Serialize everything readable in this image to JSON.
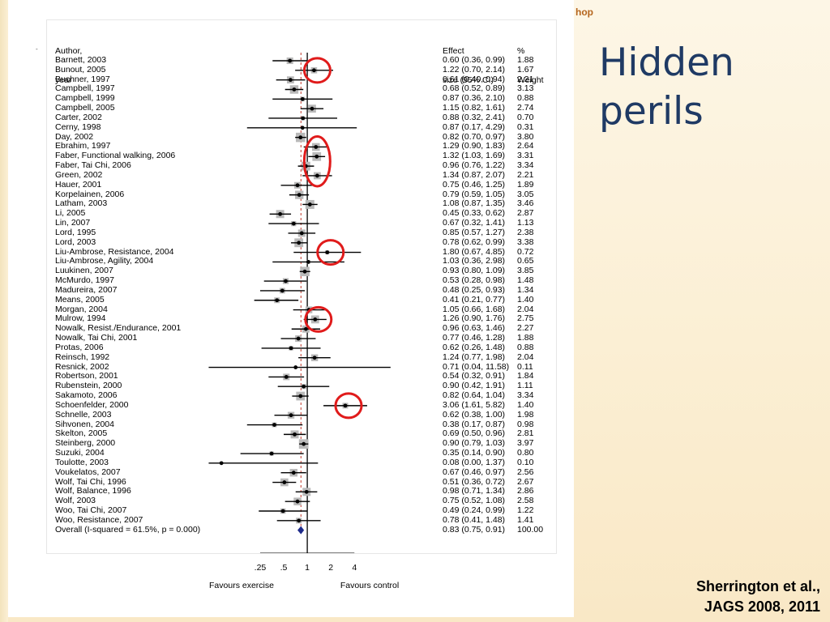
{
  "slide": {
    "title": "Hidden perils",
    "corner_tag": "hop",
    "citation_line1": "Sherrington et al.,",
    "citation_line2": "JAGS 2008, 2011",
    "stray_mark": "-"
  },
  "colors": {
    "title": "#1f3a64",
    "corner_tag": "#b5651d",
    "highlight_ellipse": "#e01b1b",
    "box_fill": "#b9b9b9",
    "overall_diamond": "#1e2a8a",
    "overall_line": "#c0392b"
  },
  "chart_data": {
    "type": "forest",
    "headers": {
      "study": [
        "Author,",
        "year"
      ],
      "effect": [
        "Effect",
        "size (95% CI)"
      ],
      "weight": [
        "%",
        "Weight"
      ]
    },
    "x_scale": "log",
    "xlim": [
      0.055,
      12
    ],
    "x_ticks": [
      0.25,
      0.5,
      1,
      2,
      4
    ],
    "x_tick_labels": [
      ".25",
      ".5",
      "1",
      "2",
      "4"
    ],
    "favours_left": "Favours exercise",
    "favours_right": "Favours control",
    "studies": [
      {
        "name": "Barnett, 2003",
        "es": 0.6,
        "lo": 0.36,
        "hi": 0.99,
        "ci_text": "0.60 (0.36, 0.99)",
        "w": 1.88,
        "w_text": "1.88"
      },
      {
        "name": "Bunout, 2005",
        "es": 1.22,
        "lo": 0.7,
        "hi": 2.14,
        "ci_text": "1.22 (0.70, 2.14)",
        "w": 1.67,
        "w_text": "1.67"
      },
      {
        "name": "Buchner, 1997",
        "es": 0.61,
        "lo": 0.4,
        "hi": 0.94,
        "ci_text": "0.61 (0.40, 0.94)",
        "w": 2.21,
        "w_text": "2.21"
      },
      {
        "name": "Campbell, 1997",
        "es": 0.68,
        "lo": 0.52,
        "hi": 0.89,
        "ci_text": "0.68 (0.52, 0.89)",
        "w": 3.13,
        "w_text": "3.13"
      },
      {
        "name": "Campbell, 1999",
        "es": 0.87,
        "lo": 0.36,
        "hi": 2.1,
        "ci_text": "0.87 (0.36, 2.10)",
        "w": 0.88,
        "w_text": "0.88"
      },
      {
        "name": "Campbell, 2005",
        "es": 1.15,
        "lo": 0.82,
        "hi": 1.61,
        "ci_text": "1.15 (0.82, 1.61)",
        "w": 2.74,
        "w_text": "2.74"
      },
      {
        "name": "Carter, 2002",
        "es": 0.88,
        "lo": 0.32,
        "hi": 2.41,
        "ci_text": "0.88 (0.32, 2.41)",
        "w": 0.7,
        "w_text": "0.70"
      },
      {
        "name": "Cerny, 1998",
        "es": 0.87,
        "lo": 0.17,
        "hi": 4.29,
        "ci_text": "0.87 (0.17, 4.29)",
        "w": 0.31,
        "w_text": "0.31"
      },
      {
        "name": "Day, 2002",
        "es": 0.82,
        "lo": 0.7,
        "hi": 0.97,
        "ci_text": "0.82 (0.70, 0.97)",
        "w": 3.8,
        "w_text": "3.80"
      },
      {
        "name": "Ebrahim, 1997",
        "es": 1.29,
        "lo": 0.9,
        "hi": 1.83,
        "ci_text": "1.29 (0.90, 1.83)",
        "w": 2.64,
        "w_text": "2.64"
      },
      {
        "name": "Faber, Functional walking, 2006",
        "es": 1.32,
        "lo": 1.03,
        "hi": 1.69,
        "ci_text": "1.32 (1.03, 1.69)",
        "w": 3.31,
        "w_text": "3.31"
      },
      {
        "name": "Faber, Tai Chi, 2006",
        "es": 0.96,
        "lo": 0.76,
        "hi": 1.22,
        "ci_text": "0.96 (0.76, 1.22)",
        "w": 3.34,
        "w_text": "3.34"
      },
      {
        "name": "Green, 2002",
        "es": 1.34,
        "lo": 0.87,
        "hi": 2.07,
        "ci_text": "1.34 (0.87, 2.07)",
        "w": 2.21,
        "w_text": "2.21"
      },
      {
        "name": "Hauer, 2001",
        "es": 0.75,
        "lo": 0.46,
        "hi": 1.25,
        "ci_text": "0.75 (0.46, 1.25)",
        "w": 1.89,
        "w_text": "1.89"
      },
      {
        "name": "Korpelainen, 2006",
        "es": 0.79,
        "lo": 0.59,
        "hi": 1.05,
        "ci_text": "0.79 (0.59, 1.05)",
        "w": 3.05,
        "w_text": "3.05"
      },
      {
        "name": "Latham, 2003",
        "es": 1.08,
        "lo": 0.87,
        "hi": 1.35,
        "ci_text": "1.08 (0.87, 1.35)",
        "w": 3.46,
        "w_text": "3.46"
      },
      {
        "name": "Li, 2005",
        "es": 0.45,
        "lo": 0.33,
        "hi": 0.62,
        "ci_text": "0.45 (0.33, 0.62)",
        "w": 2.87,
        "w_text": "2.87"
      },
      {
        "name": "Lin, 2007",
        "es": 0.67,
        "lo": 0.32,
        "hi": 1.41,
        "ci_text": "0.67 (0.32, 1.41)",
        "w": 1.13,
        "w_text": "1.13"
      },
      {
        "name": "Lord, 1995",
        "es": 0.85,
        "lo": 0.57,
        "hi": 1.27,
        "ci_text": "0.85 (0.57, 1.27)",
        "w": 2.38,
        "w_text": "2.38"
      },
      {
        "name": "Lord, 2003",
        "es": 0.78,
        "lo": 0.62,
        "hi": 0.99,
        "ci_text": "0.78 (0.62, 0.99)",
        "w": 3.38,
        "w_text": "3.38"
      },
      {
        "name": "Liu-Ambrose, Resistance, 2004",
        "es": 1.8,
        "lo": 0.67,
        "hi": 4.85,
        "ci_text": "1.80 (0.67, 4.85)",
        "w": 0.72,
        "w_text": "0.72"
      },
      {
        "name": "Liu-Ambrose, Agility, 2004",
        "es": 1.03,
        "lo": 0.36,
        "hi": 2.98,
        "ci_text": "1.03 (0.36, 2.98)",
        "w": 0.65,
        "w_text": "0.65"
      },
      {
        "name": "Luukinen, 2007",
        "es": 0.93,
        "lo": 0.8,
        "hi": 1.09,
        "ci_text": "0.93 (0.80, 1.09)",
        "w": 3.85,
        "w_text": "3.85"
      },
      {
        "name": "McMurdo, 1997",
        "es": 0.53,
        "lo": 0.28,
        "hi": 0.98,
        "ci_text": "0.53 (0.28, 0.98)",
        "w": 1.48,
        "w_text": "1.48"
      },
      {
        "name": "Madureira, 2007",
        "es": 0.48,
        "lo": 0.25,
        "hi": 0.93,
        "ci_text": "0.48 (0.25, 0.93)",
        "w": 1.34,
        "w_text": "1.34"
      },
      {
        "name": "Means, 2005",
        "es": 0.41,
        "lo": 0.21,
        "hi": 0.77,
        "ci_text": "0.41 (0.21, 0.77)",
        "w": 1.4,
        "w_text": "1.40"
      },
      {
        "name": "Morgan, 2004",
        "es": 1.05,
        "lo": 0.66,
        "hi": 1.68,
        "ci_text": "1.05 (0.66, 1.68)",
        "w": 2.04,
        "w_text": "2.04"
      },
      {
        "name": "Mulrow, 1994",
        "es": 1.26,
        "lo": 0.9,
        "hi": 1.76,
        "ci_text": "1.26 (0.90, 1.76)",
        "w": 2.75,
        "w_text": "2.75"
      },
      {
        "name": "Nowalk, Resist./Endurance, 2001",
        "es": 0.96,
        "lo": 0.63,
        "hi": 1.46,
        "ci_text": "0.96 (0.63, 1.46)",
        "w": 2.27,
        "w_text": "2.27"
      },
      {
        "name": "Nowalk, Tai Chi, 2001",
        "es": 0.77,
        "lo": 0.46,
        "hi": 1.28,
        "ci_text": "0.77 (0.46, 1.28)",
        "w": 1.88,
        "w_text": "1.88"
      },
      {
        "name": "Protas, 2006",
        "es": 0.62,
        "lo": 0.26,
        "hi": 1.48,
        "ci_text": "0.62 (0.26, 1.48)",
        "w": 0.88,
        "w_text": "0.88"
      },
      {
        "name": "Reinsch, 1992",
        "es": 1.24,
        "lo": 0.77,
        "hi": 1.98,
        "ci_text": "1.24 (0.77, 1.98)",
        "w": 2.04,
        "w_text": "2.04"
      },
      {
        "name": "Resnick, 2002",
        "es": 0.71,
        "lo": 0.04,
        "hi": 11.58,
        "ci_text": "0.71 (0.04, 11.58)",
        "w": 0.11,
        "w_text": "0.11"
      },
      {
        "name": "Robertson, 2001",
        "es": 0.54,
        "lo": 0.32,
        "hi": 0.91,
        "ci_text": "0.54 (0.32, 0.91)",
        "w": 1.84,
        "w_text": "1.84"
      },
      {
        "name": "Rubenstein, 2000",
        "es": 0.9,
        "lo": 0.42,
        "hi": 1.91,
        "ci_text": "0.90 (0.42, 1.91)",
        "w": 1.11,
        "w_text": "1.11"
      },
      {
        "name": "Sakamoto, 2006",
        "es": 0.82,
        "lo": 0.64,
        "hi": 1.04,
        "ci_text": "0.82 (0.64, 1.04)",
        "w": 3.34,
        "w_text": "3.34"
      },
      {
        "name": "Schoenfelder, 2000",
        "es": 3.06,
        "lo": 1.61,
        "hi": 5.82,
        "ci_text": "3.06 (1.61, 5.82)",
        "w": 1.4,
        "w_text": "1.40"
      },
      {
        "name": "Schnelle, 2003",
        "es": 0.62,
        "lo": 0.38,
        "hi": 1.0,
        "ci_text": "0.62 (0.38, 1.00)",
        "w": 1.98,
        "w_text": "1.98"
      },
      {
        "name": "Sihvonen, 2004",
        "es": 0.38,
        "lo": 0.17,
        "hi": 0.87,
        "ci_text": "0.38 (0.17, 0.87)",
        "w": 0.98,
        "w_text": "0.98"
      },
      {
        "name": "Skelton, 2005",
        "es": 0.69,
        "lo": 0.5,
        "hi": 0.96,
        "ci_text": "0.69 (0.50, 0.96)",
        "w": 2.81,
        "w_text": "2.81"
      },
      {
        "name": "Steinberg, 2000",
        "es": 0.9,
        "lo": 0.79,
        "hi": 1.03,
        "ci_text": "0.90 (0.79, 1.03)",
        "w": 3.97,
        "w_text": "3.97"
      },
      {
        "name": "Suzuki, 2004",
        "es": 0.35,
        "lo": 0.14,
        "hi": 0.9,
        "ci_text": "0.35 (0.14, 0.90)",
        "w": 0.8,
        "w_text": "0.80"
      },
      {
        "name": "Toulotte, 2003",
        "es": 0.08,
        "lo": 0.0,
        "hi": 1.37,
        "ci_text": "0.08 (0.00, 1.37)",
        "w": 0.1,
        "w_text": "0.10"
      },
      {
        "name": "Voukelatos, 2007",
        "es": 0.67,
        "lo": 0.46,
        "hi": 0.97,
        "ci_text": "0.67 (0.46, 0.97)",
        "w": 2.56,
        "w_text": "2.56"
      },
      {
        "name": "Wolf, Tai Chi, 1996",
        "es": 0.51,
        "lo": 0.36,
        "hi": 0.72,
        "ci_text": "0.51 (0.36, 0.72)",
        "w": 2.67,
        "w_text": "2.67"
      },
      {
        "name": "Wolf, Balance, 1996",
        "es": 0.98,
        "lo": 0.71,
        "hi": 1.34,
        "ci_text": "0.98 (0.71, 1.34)",
        "w": 2.86,
        "w_text": "2.86"
      },
      {
        "name": "Wolf, 2003",
        "es": 0.75,
        "lo": 0.52,
        "hi": 1.08,
        "ci_text": "0.75 (0.52, 1.08)",
        "w": 2.58,
        "w_text": "2.58"
      },
      {
        "name": "Woo, Tai Chi, 2007",
        "es": 0.49,
        "lo": 0.24,
        "hi": 0.99,
        "ci_text": "0.49 (0.24, 0.99)",
        "w": 1.22,
        "w_text": "1.22"
      },
      {
        "name": "Woo, Resistance, 2007",
        "es": 0.78,
        "lo": 0.41,
        "hi": 1.48,
        "ci_text": "0.78 (0.41, 1.48)",
        "w": 1.41,
        "w_text": "1.41"
      }
    ],
    "overall": {
      "name": "Overall  (I-squared = 61.5%, p = 0.000)",
      "es": 0.83,
      "lo": 0.75,
      "hi": 0.91,
      "ci_text": "0.83 (0.75, 0.91)",
      "w_text": "100.00"
    },
    "highlighted_studies": [
      "Bunout, 2005",
      "Ebrahim, 1997",
      "Faber, Functional walking, 2006",
      "Faber, Tai Chi, 2006",
      "Green, 2002",
      "Liu-Ambrose, Resistance, 2004",
      "Mulrow, 1994",
      "Schoenfelder, 2000"
    ]
  }
}
